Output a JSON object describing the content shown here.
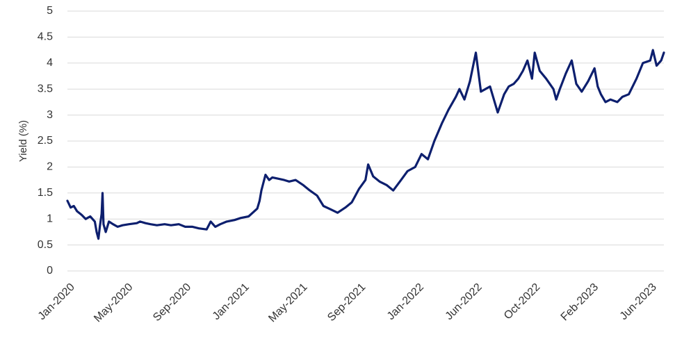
{
  "chart_data": {
    "type": "line",
    "title": "",
    "xlabel": "",
    "ylabel": "Yield (%)",
    "ylim": [
      0,
      5
    ],
    "yticks": [
      "0",
      "0.5",
      "1",
      "1.5",
      "2",
      "2.5",
      "3",
      "3.5",
      "4",
      "4.5",
      "5"
    ],
    "xticks": [
      "Jan-2020",
      "May-2020",
      "Sep-2020",
      "Jan-2021",
      "May-2021",
      "Sep-2021",
      "Jan-2022",
      "Jun-2022",
      "Oct-2022",
      "Feb-2023",
      "Jun-2023"
    ],
    "xlim": [
      "2020-01-01",
      "2023-07-31"
    ],
    "grid": "horizontal",
    "color": "#0d1f6e",
    "series": [
      {
        "x": [
          "2020-01-01",
          "2020-01-08",
          "2020-01-15",
          "2020-01-22",
          "2020-02-01",
          "2020-02-10",
          "2020-02-20",
          "2020-03-01",
          "2020-03-05",
          "2020-03-09",
          "2020-03-12",
          "2020-03-16",
          "2020-03-18",
          "2020-03-20",
          "2020-03-25",
          "2020-04-01",
          "2020-04-10",
          "2020-04-20",
          "2020-05-01",
          "2020-05-15",
          "2020-06-01",
          "2020-06-08",
          "2020-06-20",
          "2020-07-01",
          "2020-07-15",
          "2020-08-01",
          "2020-08-15",
          "2020-09-01",
          "2020-09-15",
          "2020-10-01",
          "2020-10-15",
          "2020-11-01",
          "2020-11-10",
          "2020-11-20",
          "2020-12-01",
          "2020-12-15",
          "2021-01-01",
          "2021-01-15",
          "2021-02-01",
          "2021-02-10",
          "2021-02-20",
          "2021-02-25",
          "2021-03-01",
          "2021-03-10",
          "2021-03-18",
          "2021-03-25",
          "2021-04-05",
          "2021-04-20",
          "2021-05-01",
          "2021-05-15",
          "2021-06-01",
          "2021-06-15",
          "2021-07-01",
          "2021-07-15",
          "2021-08-01",
          "2021-08-15",
          "2021-09-01",
          "2021-09-15",
          "2021-10-01",
          "2021-10-15",
          "2021-10-21",
          "2021-11-01",
          "2021-11-15",
          "2021-12-01",
          "2021-12-15",
          "2022-01-01",
          "2022-01-15",
          "2022-02-01",
          "2022-02-15",
          "2022-03-01",
          "2022-03-15",
          "2022-04-01",
          "2022-04-15",
          "2022-05-01",
          "2022-05-09",
          "2022-05-20",
          "2022-06-01",
          "2022-06-14",
          "2022-06-25",
          "2022-07-05",
          "2022-07-15",
          "2022-08-01",
          "2022-08-15",
          "2022-08-25",
          "2022-09-05",
          "2022-09-15",
          "2022-09-25",
          "2022-10-05",
          "2022-10-15",
          "2022-10-21",
          "2022-11-01",
          "2022-11-15",
          "2022-12-01",
          "2022-12-07",
          "2022-12-15",
          "2022-12-28",
          "2023-01-10",
          "2023-01-20",
          "2023-02-01",
          "2023-02-15",
          "2023-03-01",
          "2023-03-08",
          "2023-03-15",
          "2023-03-25",
          "2023-04-05",
          "2023-04-20",
          "2023-05-01",
          "2023-05-15",
          "2023-06-01",
          "2023-06-15",
          "2023-07-01",
          "2023-07-07",
          "2023-07-15",
          "2023-07-25",
          "2023-07-31"
        ],
        "y": [
          1.35,
          1.22,
          1.25,
          1.15,
          1.08,
          1.0,
          1.05,
          0.95,
          0.75,
          0.62,
          0.85,
          1.1,
          1.5,
          0.9,
          0.75,
          0.95,
          0.9,
          0.85,
          0.88,
          0.9,
          0.92,
          0.95,
          0.92,
          0.9,
          0.88,
          0.9,
          0.88,
          0.9,
          0.85,
          0.85,
          0.82,
          0.8,
          0.95,
          0.85,
          0.9,
          0.95,
          0.98,
          1.02,
          1.05,
          1.12,
          1.2,
          1.35,
          1.55,
          1.85,
          1.75,
          1.8,
          1.78,
          1.75,
          1.72,
          1.75,
          1.65,
          1.55,
          1.45,
          1.25,
          1.18,
          1.12,
          1.22,
          1.32,
          1.58,
          1.75,
          2.05,
          1.82,
          1.72,
          1.65,
          1.55,
          1.75,
          1.92,
          2.0,
          2.25,
          2.15,
          2.5,
          2.85,
          3.1,
          3.35,
          3.5,
          3.3,
          3.65,
          4.2,
          3.45,
          3.5,
          3.55,
          3.05,
          3.4,
          3.55,
          3.6,
          3.7,
          3.85,
          4.05,
          3.7,
          4.2,
          3.85,
          3.7,
          3.5,
          3.3,
          3.5,
          3.8,
          4.05,
          3.6,
          3.45,
          3.65,
          3.9,
          3.55,
          3.4,
          3.25,
          3.3,
          3.25,
          3.35,
          3.4,
          3.7,
          4.0,
          4.05,
          4.25,
          3.95,
          4.05,
          4.2
        ]
      }
    ]
  }
}
